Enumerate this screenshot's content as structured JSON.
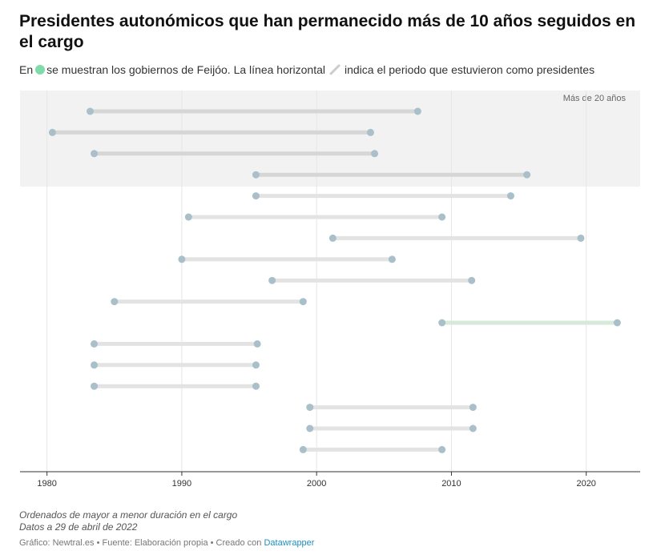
{
  "title": "Presidentes autonómicos que han permanecido más de 10 años seguidos en el cargo",
  "subtitle": {
    "before": "En",
    "after_dot": "se muestran los gobiernos de Feijóo. La línea horizontal",
    "after_line": "indica el periodo que estuvieron como presidentes"
  },
  "notes": {
    "line1": "Ordenados de mayor a menor duración en el cargo",
    "line2": "Datos a 29 de abril de 2022"
  },
  "footer": {
    "text": "Gráfico: Newtral.es • Fuente: Elaboración propia • Creado con",
    "link": "Datawrapper"
  },
  "colors": {
    "dot": "#a9bfc9",
    "bar": "#e3e3e3",
    "bar_band": "#d6d6d6",
    "highlight_bar": "#d6ead9",
    "highlight_legend": "#7fdcaa",
    "band": "#f2f2f2",
    "grid": "#e6e6e6",
    "axis": "#333333"
  },
  "chart_data": {
    "type": "dumbbell",
    "x_axis": {
      "range": [
        1978,
        2024
      ],
      "ticks": [
        1980,
        1990,
        2000,
        2010,
        2020
      ]
    },
    "band": {
      "label": "Más de 20 años",
      "rows": 4
    },
    "grid": "vertical",
    "rows": [
      {
        "start": 1983.2,
        "end": 2007.5,
        "highlight": false
      },
      {
        "start": 1980.4,
        "end": 2004.0,
        "highlight": false
      },
      {
        "start": 1983.5,
        "end": 2004.3,
        "highlight": false
      },
      {
        "start": 1995.5,
        "end": 2015.6,
        "highlight": false
      },
      {
        "start": 1995.5,
        "end": 2014.4,
        "highlight": false
      },
      {
        "start": 1990.5,
        "end": 2009.3,
        "highlight": false
      },
      {
        "start": 2001.2,
        "end": 2019.6,
        "highlight": false
      },
      {
        "start": 1990.0,
        "end": 2005.6,
        "highlight": false
      },
      {
        "start": 1996.7,
        "end": 2011.5,
        "highlight": false
      },
      {
        "start": 1985.0,
        "end": 1999.0,
        "highlight": false
      },
      {
        "start": 2009.3,
        "end": 2022.3,
        "highlight": true
      },
      {
        "start": 1983.5,
        "end": 1995.6,
        "highlight": false
      },
      {
        "start": 1983.5,
        "end": 1995.5,
        "highlight": false
      },
      {
        "start": 1983.5,
        "end": 1995.5,
        "highlight": false
      },
      {
        "start": 1999.5,
        "end": 2011.6,
        "highlight": false
      },
      {
        "start": 1999.5,
        "end": 2011.6,
        "highlight": false
      },
      {
        "start": 1999.0,
        "end": 2009.3,
        "highlight": false
      }
    ]
  }
}
